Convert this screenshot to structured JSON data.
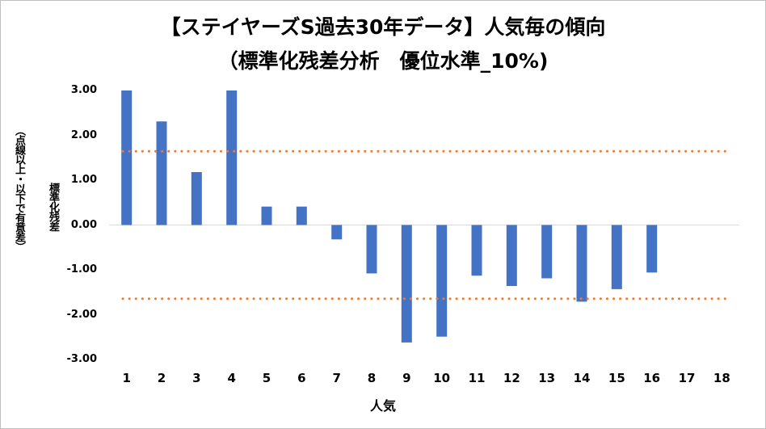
{
  "chart_data": {
    "type": "bar",
    "title": "【ステイヤーズS過去30年データ】人気毎の傾向",
    "subtitle": "（標準化残差分析　優位水準_10%)",
    "xlabel": "人気",
    "ylabel": "標準化残差",
    "ylabel_note": "（点線以上・以下で有意差）",
    "categories": [
      "1",
      "2",
      "3",
      "4",
      "5",
      "6",
      "7",
      "8",
      "9",
      "10",
      "11",
      "12",
      "13",
      "14",
      "15",
      "16",
      "17",
      "18"
    ],
    "values": [
      3.0,
      2.31,
      1.18,
      3.0,
      0.41,
      0.41,
      -0.32,
      -1.08,
      -2.62,
      -2.49,
      -1.13,
      -1.36,
      -1.19,
      -1.71,
      -1.43,
      -1.06,
      null,
      null
    ],
    "ylim": [
      -3.0,
      3.0
    ],
    "yticks": [
      3.0,
      2.0,
      1.0,
      0.0,
      -1.0,
      -2.0,
      -3.0
    ],
    "ytick_labels": [
      "3.00",
      "2.00",
      "1.00",
      "0.00",
      "-1.00",
      "-2.00",
      "-3.00"
    ],
    "reference_lines": [
      1.645,
      -1.645
    ],
    "bar_color": "#4472c4",
    "reference_line_color": "#ed7d31",
    "grid": false,
    "legend": "none"
  }
}
